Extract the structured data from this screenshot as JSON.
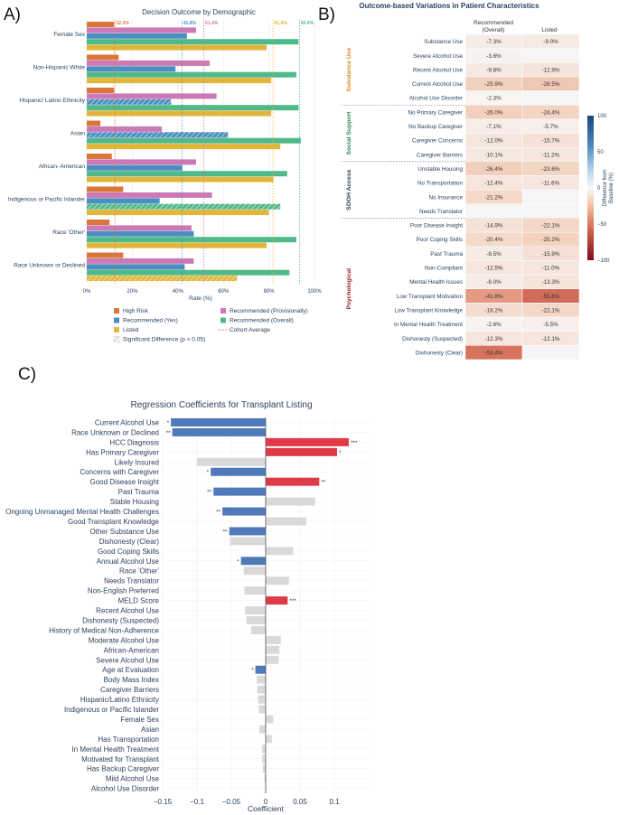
{
  "panel_labels": {
    "a": "A)",
    "b": "B)",
    "c": "C)"
  },
  "chart_data": [
    {
      "type": "bar",
      "id": "decision-outcome",
      "title": "Decision Outcome by Demographic",
      "xlabel": "Rate (%)",
      "xlim": [
        0,
        100
      ],
      "x_ticks": [
        "0%",
        "20%",
        "40%",
        "60%",
        "80%",
        "100%"
      ],
      "categories": [
        "Female Sex",
        "Non-Hispanic White",
        "Hispanic/ Latino Ethnicity",
        "Asian",
        "African- American",
        "Indigenous or Pacific Islander",
        "Race 'Other'",
        "Race Unknown or Declined"
      ],
      "series": [
        {
          "name": "High Risk",
          "color": "#d9773b",
          "values": [
            12,
            14,
            12,
            6,
            11,
            16,
            10,
            16
          ],
          "hatched": [
            false,
            false,
            false,
            false,
            false,
            false,
            false,
            false
          ]
        },
        {
          "name": "Recommended (Provisionally)",
          "color": "#cc79b5",
          "values": [
            48,
            54,
            57,
            33,
            48,
            55,
            46,
            47
          ],
          "hatched": [
            false,
            false,
            false,
            false,
            false,
            false,
            false,
            false
          ]
        },
        {
          "name": "Recommended (Yes)",
          "color": "#4a8fc0",
          "values": [
            44,
            39,
            37,
            62,
            42,
            32,
            47,
            43
          ],
          "hatched": [
            false,
            false,
            true,
            true,
            false,
            false,
            false,
            false
          ]
        },
        {
          "name": "Recommended (Overall)",
          "color": "#4fb98a",
          "values": [
            93,
            92,
            93,
            94,
            88,
            85,
            92,
            89
          ],
          "hatched": [
            false,
            false,
            false,
            false,
            false,
            true,
            false,
            false
          ]
        },
        {
          "name": "Listed",
          "color": "#e2b63a",
          "values": [
            79,
            81,
            81,
            85,
            82,
            80,
            79,
            66
          ],
          "hatched": [
            false,
            false,
            false,
            false,
            false,
            false,
            false,
            true
          ]
        }
      ],
      "cohort_averages": [
        {
          "series": "High Risk",
          "value": 12.3,
          "label": "12.3%",
          "color": "#d9773b"
        },
        {
          "series": "Recommended (Yes)",
          "value": 41.8,
          "label": "41.8%",
          "color": "#4a8fc0"
        },
        {
          "series": "Recommended (Provisionally)",
          "value": 51.4,
          "label": "51.4%",
          "color": "#cc79b5"
        },
        {
          "series": "Listed",
          "value": 81.8,
          "label": "81.8%",
          "color": "#e2b63a"
        },
        {
          "series": "Recommended (Overall)",
          "value": 93.4,
          "label": "93.4%",
          "color": "#4fb98a"
        }
      ],
      "legend": [
        {
          "label": "High Risk",
          "color": "#d9773b",
          "kind": "swatch"
        },
        {
          "label": "Recommended (Provisionally)",
          "color": "#cc79b5",
          "kind": "swatch"
        },
        {
          "label": "Recommended (Yes)",
          "color": "#4a8fc0",
          "kind": "swatch"
        },
        {
          "label": "Recommended (Overall)",
          "color": "#4fb98a",
          "kind": "swatch"
        },
        {
          "label": "Listed",
          "color": "#e2b63a",
          "kind": "swatch"
        },
        {
          "label": "Cohort Average",
          "color": "#555555",
          "kind": "dotted"
        },
        {
          "label": "Significant Difference (p < 0.05)",
          "color": "#999999",
          "kind": "hatch"
        }
      ]
    },
    {
      "type": "heatmap",
      "id": "outcome-variations",
      "title": "Outcome-based Variations in Patient Characteristics",
      "columns": [
        "Recommended\n(Overall)",
        "Listed"
      ],
      "groups": [
        {
          "name": "Substance Use",
          "color": "#d98a1f",
          "rows": [
            {
              "label": "Substance Use",
              "values": [
                -7.3,
                -9.0
              ]
            },
            {
              "label": "Severe Alcohol Use",
              "values": [
                -3.6,
                null
              ]
            },
            {
              "label": "Recent Alcohol Use",
              "values": [
                -9.8,
                -12.9
              ]
            },
            {
              "label": "Current Alcohol Use",
              "values": [
                -25.9,
                -28.5
              ]
            },
            {
              "label": "Alcohol Use Disorder",
              "values": [
                -2.3,
                null
              ]
            }
          ]
        },
        {
          "name": "Social Support",
          "color": "#2e8b57",
          "rows": [
            {
              "label": "No Primary Caregiver",
              "values": [
                -26.0,
                -24.4
              ]
            },
            {
              "label": "No Backup Caregiver",
              "values": [
                -7.1,
                -5.7
              ]
            },
            {
              "label": "Caregiver Concerns",
              "values": [
                -12.0,
                -15.7
              ]
            },
            {
              "label": "Caregiver Barriers",
              "values": [
                -10.1,
                -11.2
              ]
            }
          ]
        },
        {
          "name": "SDOH Access",
          "color": "#1f3a5a",
          "rows": [
            {
              "label": "Unstable Housing",
              "values": [
                -26.4,
                -23.6
              ]
            },
            {
              "label": "No Transportation",
              "values": [
                -12.4,
                -11.6
              ]
            },
            {
              "label": "No Insurance",
              "values": [
                -21.2,
                null
              ]
            },
            {
              "label": "Needs Translator",
              "values": [
                null,
                null
              ]
            }
          ]
        },
        {
          "name": "Psychological",
          "color": "#9b1b1b",
          "rows": [
            {
              "label": "Poor Disease Insight",
              "values": [
                -14.9,
                -22.1
              ]
            },
            {
              "label": "Poor Coping Skills",
              "values": [
                -20.4,
                -25.2
              ]
            },
            {
              "label": "Past Trauma",
              "values": [
                -8.5,
                -15.9
              ]
            },
            {
              "label": "Non-Compliant",
              "values": [
                -12.5,
                -11.0
              ]
            },
            {
              "label": "Mental Health Issues",
              "values": [
                -8.0,
                -13.3
              ]
            },
            {
              "label": "Low Transplant Motivation",
              "values": [
                -41.8,
                -55.6
              ]
            },
            {
              "label": "Low Transplant Knowledge",
              "values": [
                -18.2,
                -22.1
              ]
            },
            {
              "label": "In Mental Health Treatment",
              "values": [
                -2.6,
                -5.5
              ]
            },
            {
              "label": "Dishonesty (Suspected)",
              "values": [
                -12.3,
                -12.1
              ]
            },
            {
              "label": "Dishonesty (Clear)",
              "values": [
                -53.4,
                null
              ]
            }
          ]
        }
      ],
      "colorbar": {
        "title": "Difference from\nBaseline (%)",
        "range": [
          -100,
          100
        ],
        "ticks": [
          "100",
          "50",
          "0",
          "−50",
          "−100"
        ]
      }
    },
    {
      "type": "bar",
      "id": "regression-coefficients",
      "orientation": "horizontal",
      "title": "Regression Coefficients for Transplant Listing",
      "xlabel": "Coefficient",
      "xlim": [
        -0.15,
        0.15
      ],
      "x_ticks": [
        "−0.15",
        "−0.1",
        "−0.05",
        "0",
        "0.05",
        "0.1"
      ],
      "colors": {
        "negative_significant": "#4f79b8",
        "positive_significant": "#e03a48",
        "not_significant": "#d9d9d9"
      },
      "items": [
        {
          "label": "Current Alcohol Use",
          "value": -0.138,
          "sig": "*"
        },
        {
          "label": "Race Unknown or Declined",
          "value": -0.136,
          "sig": "**"
        },
        {
          "label": "HCC Diagnosis",
          "value": 0.121,
          "sig": "***"
        },
        {
          "label": "Has Primary Caregiver",
          "value": 0.104,
          "sig": "*"
        },
        {
          "label": "Likely Insured",
          "value": -0.1,
          "sig": ""
        },
        {
          "label": "Concerns with Caregiver",
          "value": -0.08,
          "sig": "*"
        },
        {
          "label": "Good Disease Insight",
          "value": 0.078,
          "sig": "**"
        },
        {
          "label": "Past Trauma",
          "value": -0.076,
          "sig": "**"
        },
        {
          "label": "Stable Housing",
          "value": 0.072,
          "sig": ""
        },
        {
          "label": "Ongoing Unmanaged Mental Health Challenges",
          "value": -0.063,
          "sig": "**"
        },
        {
          "label": "Good Transplant Knowledge",
          "value": 0.059,
          "sig": ""
        },
        {
          "label": "Other Substance Use",
          "value": -0.053,
          "sig": "**"
        },
        {
          "label": "Dishonesty (Clear)",
          "value": -0.052,
          "sig": ""
        },
        {
          "label": "Good Coping Skills",
          "value": 0.04,
          "sig": ""
        },
        {
          "label": "Annual Alcohol Use",
          "value": -0.036,
          "sig": "*"
        },
        {
          "label": "Race 'Other'",
          "value": -0.032,
          "sig": ""
        },
        {
          "label": "Needs Translator",
          "value": 0.034,
          "sig": ""
        },
        {
          "label": "Non-English Preferred",
          "value": -0.031,
          "sig": ""
        },
        {
          "label": "MELD Score",
          "value": 0.032,
          "sig": "***"
        },
        {
          "label": "Recent Alcohol Use",
          "value": -0.03,
          "sig": ""
        },
        {
          "label": "Dishonesty (Suspected)",
          "value": -0.028,
          "sig": ""
        },
        {
          "label": "History of Medical Non-Adherence",
          "value": -0.021,
          "sig": ""
        },
        {
          "label": "Moderate Alcohol Use",
          "value": 0.022,
          "sig": ""
        },
        {
          "label": "African-American",
          "value": 0.02,
          "sig": ""
        },
        {
          "label": "Severe Alcohol Use",
          "value": 0.019,
          "sig": ""
        },
        {
          "label": "Age at Evaluation",
          "value": -0.015,
          "sig": "*"
        },
        {
          "label": "Body Mass Index",
          "value": -0.013,
          "sig": ""
        },
        {
          "label": "Caregiver Barriers",
          "value": -0.012,
          "sig": ""
        },
        {
          "label": "Hispanic/Latino Ethnicity",
          "value": -0.011,
          "sig": ""
        },
        {
          "label": "Indigenous or Pacific Islander",
          "value": -0.01,
          "sig": ""
        },
        {
          "label": "Female Sex",
          "value": 0.011,
          "sig": ""
        },
        {
          "label": "Asian",
          "value": -0.009,
          "sig": ""
        },
        {
          "label": "Has Transportation",
          "value": 0.009,
          "sig": ""
        },
        {
          "label": "In Mental Health Treatment",
          "value": -0.005,
          "sig": ""
        },
        {
          "label": "Motivated for Transplant",
          "value": -0.005,
          "sig": ""
        },
        {
          "label": "Has Backup Caregiver",
          "value": -0.004,
          "sig": ""
        },
        {
          "label": "Mild Alcohol Use",
          "value": -0.002,
          "sig": ""
        },
        {
          "label": "Alcohol Use Disorder",
          "value": 0.001,
          "sig": ""
        }
      ]
    }
  ]
}
